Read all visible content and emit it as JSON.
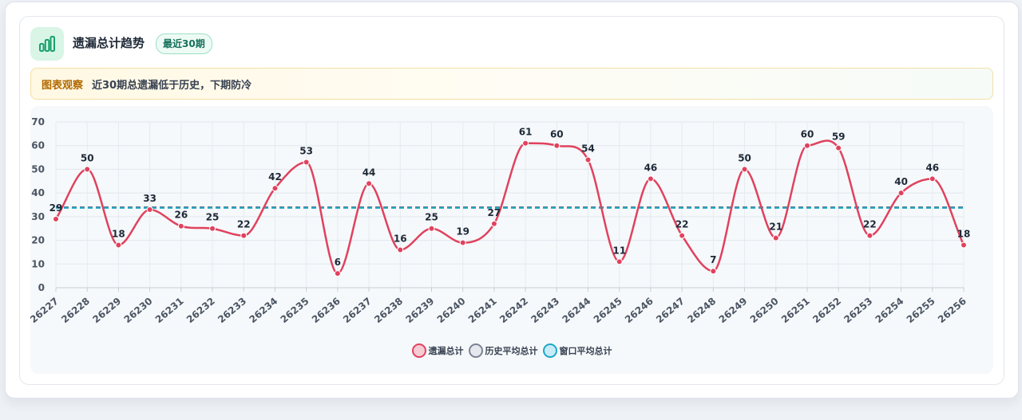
{
  "header": {
    "title": "遗漏总计趋势",
    "badge": "最近30期",
    "icon": "bar-chart-icon"
  },
  "notice": {
    "tag": "图表观察",
    "text": "近30期总遗漏低于历史，下期防冷"
  },
  "colors": {
    "primary": "#e0425e",
    "history": "#6b7280",
    "window": "#1ea7c8"
  },
  "legend": [
    {
      "label": "遗漏总计",
      "fill": "#f6cbd3",
      "stroke": "#e0425e"
    },
    {
      "label": "历史平均总计",
      "fill": "#e5e8ee",
      "stroke": "#7b8494"
    },
    {
      "label": "窗口平均总计",
      "fill": "#c8ecf7",
      "stroke": "#1ea7c8"
    }
  ],
  "chart_data": {
    "type": "line",
    "categories": [
      "26227",
      "26228",
      "26229",
      "26230",
      "26231",
      "26232",
      "26233",
      "26234",
      "26235",
      "26236",
      "26237",
      "26238",
      "26239",
      "26240",
      "26241",
      "26242",
      "26243",
      "26244",
      "26245",
      "26246",
      "26247",
      "26248",
      "26249",
      "26250",
      "26251",
      "26252",
      "26253",
      "26254",
      "26255",
      "26256"
    ],
    "series": [
      {
        "name": "遗漏总计",
        "values": [
          29,
          50,
          18,
          33,
          26,
          25,
          22,
          42,
          53,
          6,
          44,
          16,
          25,
          19,
          27,
          61,
          60,
          54,
          11,
          46,
          22,
          7,
          50,
          21,
          60,
          59,
          22,
          40,
          46,
          18
        ]
      },
      {
        "name": "历史平均总计",
        "values": [
          34,
          34,
          34,
          34,
          34,
          34,
          34,
          34,
          34,
          34,
          34,
          34,
          34,
          34,
          34,
          34,
          34,
          34,
          34,
          34,
          34,
          34,
          34,
          34,
          34,
          34,
          34,
          34,
          34,
          34
        ]
      },
      {
        "name": "窗口平均总计",
        "values": [
          33.7,
          33.7,
          33.7,
          33.7,
          33.7,
          33.7,
          33.7,
          33.7,
          33.7,
          33.7,
          33.7,
          33.7,
          33.7,
          33.7,
          33.7,
          33.7,
          33.7,
          33.7,
          33.7,
          33.7,
          33.7,
          33.7,
          33.7,
          33.7,
          33.7,
          33.7,
          33.7,
          33.7,
          33.7,
          33.7
        ]
      }
    ],
    "yticks": [
      0,
      10,
      20,
      30,
      40,
      50,
      60,
      70
    ],
    "ylim": [
      0,
      70
    ],
    "grid": true,
    "legend_position": "bottom-center"
  }
}
